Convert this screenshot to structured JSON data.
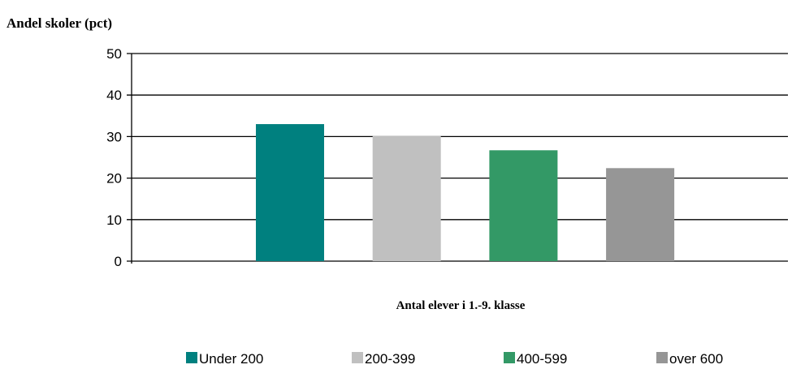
{
  "chart_data": {
    "type": "bar",
    "ylabel": "Andel skoler (pct)",
    "xlabel": "Antal elever i 1.-9. klasse",
    "ylim": [
      0,
      50
    ],
    "yticks": [
      0,
      10,
      20,
      30,
      40,
      50
    ],
    "grid": true,
    "legend_position": "bottom",
    "categories": [
      "Under 200",
      "200-399",
      "400-599",
      "over 600"
    ],
    "values": [
      33,
      30.2,
      26.7,
      22.4
    ],
    "colors": [
      "#00807f",
      "#c0c0c0",
      "#339966",
      "#969696"
    ]
  }
}
